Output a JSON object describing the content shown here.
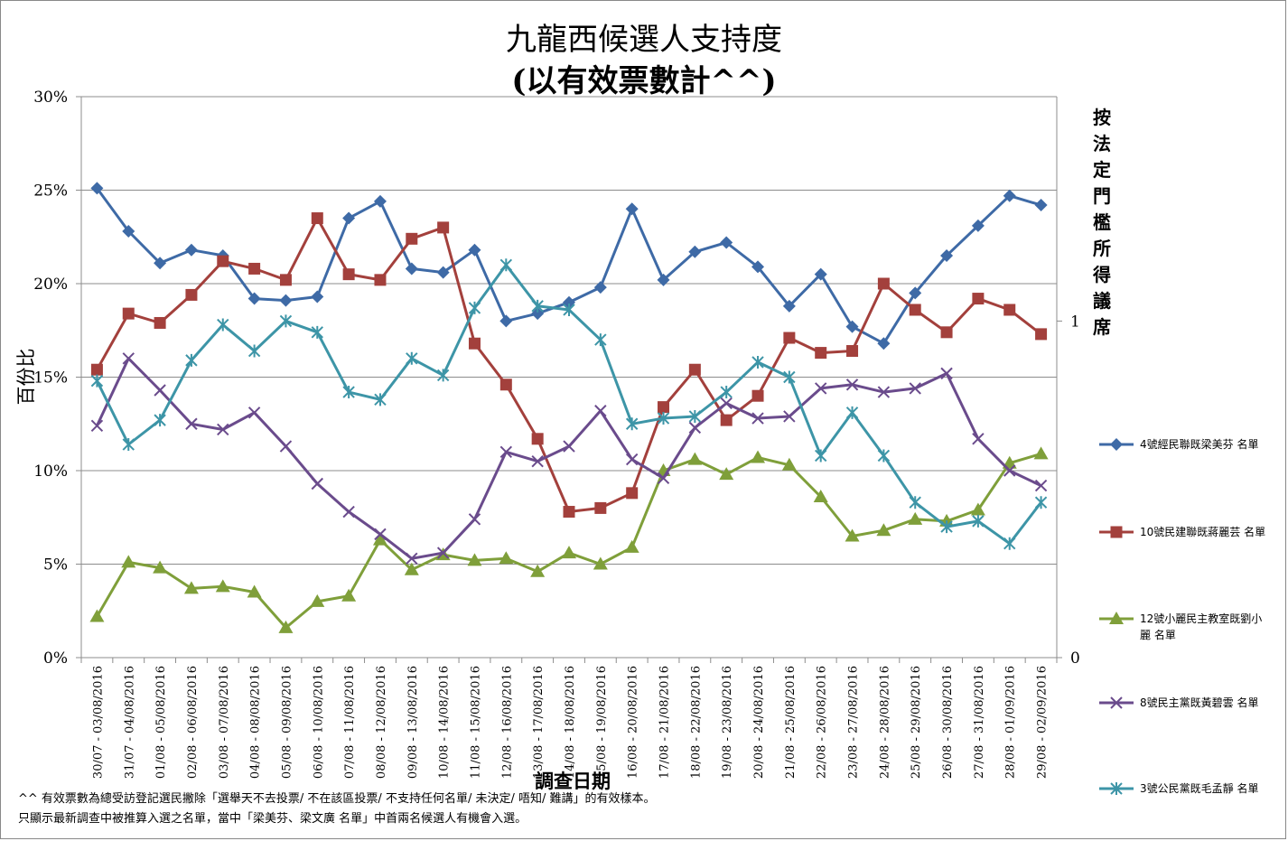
{
  "chart_data": {
    "type": "line",
    "title": "九龍西候選人支持度",
    "subtitle": "(以有效票數計^^)",
    "xlabel": "調查日期",
    "ylabel": "百份比",
    "y2label": "按法定門檻所得議席",
    "ylim": [
      0,
      30
    ],
    "y_ticks": [
      "0%",
      "5%",
      "10%",
      "15%",
      "20%",
      "25%",
      "30%"
    ],
    "y2_ticks": [
      "0",
      "1"
    ],
    "y2lim": [
      0,
      1.6667
    ],
    "grid": true,
    "legend_position": "right",
    "categories": [
      "30/07 - 03/08/2016",
      "31/07 - 04/08/2016",
      "01/08 - 05/08/2016",
      "02/08 - 06/08/2016",
      "03/08 - 07/08/2016",
      "04/08 - 08/08/2016",
      "05/08 - 09/08/2016",
      "06/08 - 10/08/2016",
      "07/08 - 11/08/2016",
      "08/08 - 12/08/2016",
      "09/08 - 13/08/2016",
      "10/08 - 14/08/2016",
      "11/08 - 15/08/2016",
      "12/08 - 16/08/2016",
      "13/08 - 17/08/2016",
      "14/08 - 18/08/2016",
      "15/08 - 19/08/2016",
      "16/08 - 20/08/2016",
      "17/08 - 21/08/2016",
      "18/08 - 22/08/2016",
      "19/08 - 23/08/2016",
      "20/08 - 24/08/2016",
      "21/08 - 25/08/2016",
      "22/08 - 26/08/2016",
      "23/08 - 27/08/2016",
      "24/08 - 28/08/2016",
      "25/08 - 29/08/2016",
      "26/08 - 30/08/2016",
      "27/08 - 31/08/2016",
      "28/08 - 01/09/2016",
      "29/08 - 02/09/2016"
    ],
    "series": [
      {
        "name": "4號經民聯既梁美芬 名單",
        "color": "#3e6aa6",
        "marker": "diamond",
        "values": [
          25.1,
          22.8,
          21.1,
          21.8,
          21.5,
          19.2,
          19.1,
          19.3,
          23.5,
          24.4,
          20.8,
          20.6,
          21.8,
          18.0,
          18.4,
          19.0,
          19.8,
          24.0,
          20.2,
          21.7,
          22.2,
          20.9,
          18.8,
          20.5,
          17.7,
          16.8,
          19.5,
          21.5,
          23.1,
          24.7,
          24.2
        ]
      },
      {
        "name": "10號民建聯既蔣麗芸 名單",
        "color": "#a3403c",
        "marker": "square",
        "values": [
          15.4,
          18.4,
          17.9,
          19.4,
          21.2,
          20.8,
          20.2,
          23.5,
          20.5,
          20.2,
          22.4,
          23.0,
          16.8,
          14.6,
          11.7,
          7.8,
          8.0,
          8.8,
          13.4,
          15.4,
          12.7,
          14.0,
          17.1,
          16.3,
          16.4,
          20.0,
          18.6,
          17.4,
          19.2,
          18.6,
          17.3
        ]
      },
      {
        "name": "12號小麗民主教室既劉小麗 名單",
        "color": "#7f9f3a",
        "marker": "triangle",
        "values": [
          2.2,
          5.1,
          4.8,
          3.7,
          3.8,
          3.5,
          1.6,
          3.0,
          3.3,
          6.3,
          4.7,
          5.5,
          5.2,
          5.3,
          4.6,
          5.6,
          5.0,
          5.9,
          10.0,
          10.6,
          9.8,
          10.7,
          10.3,
          8.6,
          6.5,
          6.8,
          7.4,
          7.3,
          7.9,
          10.4,
          10.9
        ]
      },
      {
        "name": "8號民主黨既黃碧雲 名單",
        "color": "#6a4b8c",
        "marker": "x",
        "values": [
          12.4,
          16.0,
          14.3,
          12.5,
          12.2,
          13.1,
          11.3,
          9.3,
          7.8,
          6.6,
          5.3,
          5.6,
          7.4,
          11.0,
          10.5,
          11.3,
          13.2,
          10.6,
          9.6,
          12.3,
          13.6,
          12.8,
          12.9,
          14.4,
          14.6,
          14.2,
          14.4,
          15.2,
          11.7,
          10.0,
          9.2
        ]
      },
      {
        "name": "3號公民黨既毛孟靜 名單",
        "color": "#3d95a7",
        "marker": "star",
        "values": [
          14.8,
          11.4,
          12.7,
          15.9,
          17.8,
          16.4,
          18.0,
          17.4,
          14.2,
          13.8,
          16.0,
          15.1,
          18.7,
          21.0,
          18.8,
          18.6,
          17.0,
          12.5,
          12.8,
          12.9,
          14.2,
          15.8,
          15.0,
          10.8,
          13.1,
          10.8,
          8.3,
          7.0,
          7.3,
          6.1,
          8.3
        ]
      }
    ]
  },
  "footnotes": [
    "^^ 有效票數為總受訪登記選民撇除「選舉天不去投票/ 不在該區投票/ 不支持任何名單/ 未決定/ 唔知/ 難講」的有效樣本。",
    "只顯示最新調查中被推算入選之名單，當中「梁美芬、梁文廣 名單」中首兩名候選人有機會入選。"
  ]
}
